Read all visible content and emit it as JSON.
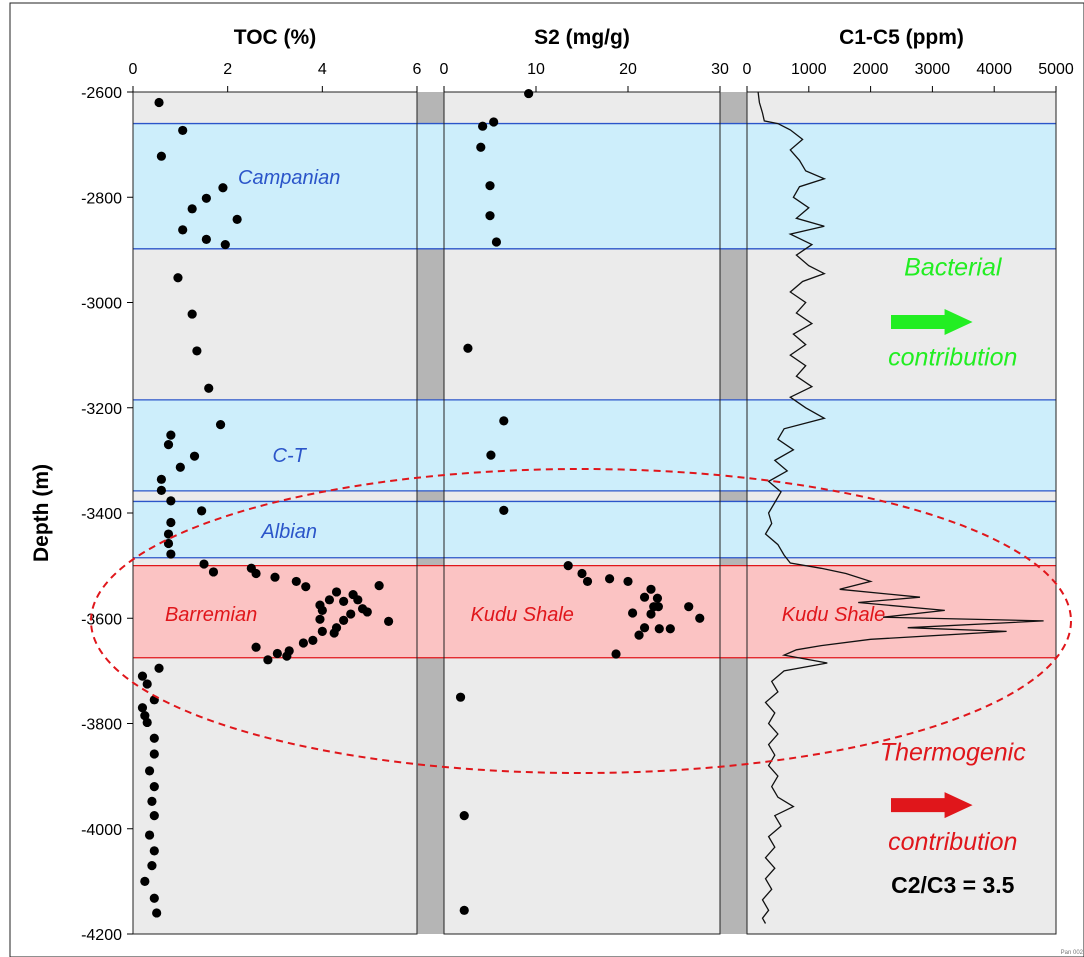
{
  "chart_data": {
    "type": "scatter",
    "ylabel": "Depth (m)",
    "ylim": [
      -4200,
      -2600
    ],
    "y_ticks": [
      "-2600",
      "-2800",
      "-3000",
      "-3200",
      "-3400",
      "-3600",
      "-3800",
      "-4000",
      "-4200"
    ],
    "y_tick_values": [
      -2600,
      -2800,
      -3000,
      -3200,
      -3400,
      -3600,
      -3800,
      -4000,
      -4200
    ],
    "colors": {
      "panel_bg": "#ebebeb",
      "blue_band": "#cdeefb",
      "blue_line": "#2b55c9",
      "red_band": "#fbc3c3",
      "red_line": "#e0161b",
      "bacterial": "#22ee22",
      "thermogenic": "#ee1111",
      "points": "#000000"
    },
    "bands": [
      {
        "top": -2660,
        "bottom": -2898,
        "color": "blue"
      },
      {
        "top": -3185,
        "bottom": -3358,
        "color": "blue"
      },
      {
        "top": -3378,
        "bottom": -3485,
        "color": "blue"
      },
      {
        "top": -3500,
        "bottom": -3675,
        "color": "red"
      }
    ],
    "panels": [
      {
        "title": "TOC (%)",
        "xlim": [
          0,
          6
        ],
        "x_ticks": [
          0,
          2,
          4,
          6
        ],
        "x_tick_labels": [
          "0",
          "2",
          "4",
          "6"
        ],
        "labels": [
          {
            "text": "Campanian",
            "x": 3.3,
            "y": -2760,
            "color": "blue"
          },
          {
            "text": "C-T",
            "x": 3.3,
            "y": -3288,
            "color": "blue"
          },
          {
            "text": "Albian",
            "x": 3.3,
            "y": -3432,
            "color": "blue"
          },
          {
            "text": "Barremian",
            "x": 1.65,
            "y": -3590,
            "color": "red"
          }
        ],
        "points": [
          [
            0.55,
            -2620
          ],
          [
            1.05,
            -2673
          ],
          [
            0.6,
            -2722
          ],
          [
            1.9,
            -2782
          ],
          [
            1.55,
            -2802
          ],
          [
            1.25,
            -2822
          ],
          [
            2.2,
            -2842
          ],
          [
            1.05,
            -2862
          ],
          [
            1.55,
            -2880
          ],
          [
            1.95,
            -2890
          ],
          [
            0.95,
            -2953
          ],
          [
            1.25,
            -3022
          ],
          [
            1.35,
            -3092
          ],
          [
            1.6,
            -3163
          ],
          [
            1.85,
            -3232
          ],
          [
            0.8,
            -3252
          ],
          [
            0.75,
            -3270
          ],
          [
            1.3,
            -3292
          ],
          [
            1.0,
            -3313
          ],
          [
            0.6,
            -3336
          ],
          [
            0.6,
            -3357
          ],
          [
            0.8,
            -3377
          ],
          [
            1.45,
            -3396
          ],
          [
            0.8,
            -3418
          ],
          [
            0.75,
            -3440
          ],
          [
            0.75,
            -3458
          ],
          [
            0.8,
            -3478
          ],
          [
            1.5,
            -3497
          ],
          [
            1.7,
            -3512
          ],
          [
            2.5,
            -3505
          ],
          [
            2.6,
            -3515
          ],
          [
            3.0,
            -3522
          ],
          [
            3.45,
            -3530
          ],
          [
            3.65,
            -3540
          ],
          [
            4.3,
            -3550
          ],
          [
            4.65,
            -3555
          ],
          [
            5.2,
            -3538
          ],
          [
            4.15,
            -3565
          ],
          [
            4.45,
            -3568
          ],
          [
            4.75,
            -3565
          ],
          [
            3.95,
            -3575
          ],
          [
            4.0,
            -3585
          ],
          [
            4.85,
            -3582
          ],
          [
            4.6,
            -3592
          ],
          [
            4.95,
            -3588
          ],
          [
            3.95,
            -3602
          ],
          [
            4.45,
            -3604
          ],
          [
            5.4,
            -3606
          ],
          [
            4.3,
            -3618
          ],
          [
            4.0,
            -3625
          ],
          [
            4.25,
            -3628
          ],
          [
            3.8,
            -3642
          ],
          [
            3.6,
            -3647
          ],
          [
            2.6,
            -3655
          ],
          [
            3.3,
            -3662
          ],
          [
            3.05,
            -3667
          ],
          [
            3.25,
            -3672
          ],
          [
            2.85,
            -3679
          ],
          [
            0.55,
            -3695
          ],
          [
            0.2,
            -3710
          ],
          [
            0.3,
            -3725
          ],
          [
            0.45,
            -3755
          ],
          [
            0.2,
            -3770
          ],
          [
            0.25,
            -3785
          ],
          [
            0.3,
            -3798
          ],
          [
            0.45,
            -3828
          ],
          [
            0.45,
            -3858
          ],
          [
            0.35,
            -3890
          ],
          [
            0.45,
            -3920
          ],
          [
            0.4,
            -3948
          ],
          [
            0.45,
            -3975
          ],
          [
            0.35,
            -4012
          ],
          [
            0.45,
            -4042
          ],
          [
            0.4,
            -4070
          ],
          [
            0.25,
            -4100
          ],
          [
            0.45,
            -4132
          ],
          [
            0.5,
            -4160
          ]
        ]
      },
      {
        "title": "S2 (mg/g)",
        "xlim": [
          0,
          30
        ],
        "x_ticks": [
          0,
          10,
          20,
          30
        ],
        "x_tick_labels": [
          "0",
          "10",
          "20",
          "30"
        ],
        "labels": [
          {
            "text": "Kudu Shale",
            "x": 8.5,
            "y": -3590,
            "color": "red"
          }
        ],
        "points": [
          [
            9.2,
            -2603
          ],
          [
            5.4,
            -2657
          ],
          [
            4.2,
            -2665
          ],
          [
            4.0,
            -2705
          ],
          [
            5.0,
            -2778
          ],
          [
            5.0,
            -2835
          ],
          [
            5.7,
            -2885
          ],
          [
            2.6,
            -3087
          ],
          [
            6.5,
            -3225
          ],
          [
            5.1,
            -3290
          ],
          [
            6.5,
            -3395
          ],
          [
            13.5,
            -3500
          ],
          [
            15.0,
            -3515
          ],
          [
            15.6,
            -3530
          ],
          [
            18.0,
            -3525
          ],
          [
            20.0,
            -3530
          ],
          [
            22.5,
            -3545
          ],
          [
            21.8,
            -3560
          ],
          [
            23.2,
            -3562
          ],
          [
            22.8,
            -3578
          ],
          [
            23.3,
            -3578
          ],
          [
            26.6,
            -3578
          ],
          [
            20.5,
            -3590
          ],
          [
            22.5,
            -3592
          ],
          [
            27.8,
            -3600
          ],
          [
            21.8,
            -3618
          ],
          [
            23.4,
            -3620
          ],
          [
            24.6,
            -3620
          ],
          [
            21.2,
            -3632
          ],
          [
            18.7,
            -3668
          ],
          [
            1.8,
            -3750
          ],
          [
            2.2,
            -3975
          ],
          [
            2.2,
            -4155
          ]
        ]
      },
      {
        "title": "C1-C5 (ppm)",
        "xlim": [
          0,
          5000
        ],
        "x_ticks": [
          0,
          1000,
          2000,
          3000,
          4000,
          5000
        ],
        "x_tick_labels": [
          "0",
          "1000",
          "2000",
          "3000",
          "4000",
          "5000"
        ],
        "labels": [
          {
            "text": "Kudu Shale",
            "x": 1400,
            "y": -3590,
            "color": "red"
          }
        ],
        "annotations": [
          {
            "text": "Bacterial",
            "x": 3330,
            "y": -2932,
            "color": "green"
          },
          {
            "text": "contribution",
            "x": 3330,
            "y": -3103,
            "color": "green"
          },
          {
            "text": "Thermogenic",
            "x": 3330,
            "y": -3853,
            "color": "red"
          },
          {
            "text": "contribution",
            "x": 3330,
            "y": -4023,
            "color": "red"
          },
          {
            "text": "C2/C3 = 3.5",
            "x": 3330,
            "y": -4105,
            "color": "black"
          }
        ],
        "arrows": [
          {
            "x1": 2330,
            "x2": 3650,
            "y": -3037,
            "color": "green"
          },
          {
            "x1": 2330,
            "x2": 3650,
            "y": -3955,
            "color": "red"
          }
        ],
        "line": [
          [
            180,
            -2600
          ],
          [
            200,
            -2620
          ],
          [
            250,
            -2640
          ],
          [
            280,
            -2655
          ],
          [
            500,
            -2660
          ],
          [
            700,
            -2672
          ],
          [
            900,
            -2690
          ],
          [
            700,
            -2710
          ],
          [
            850,
            -2730
          ],
          [
            950,
            -2750
          ],
          [
            1250,
            -2765
          ],
          [
            850,
            -2780
          ],
          [
            750,
            -2800
          ],
          [
            1000,
            -2820
          ],
          [
            800,
            -2840
          ],
          [
            1250,
            -2855
          ],
          [
            700,
            -2870
          ],
          [
            1050,
            -2890
          ],
          [
            800,
            -2910
          ],
          [
            1000,
            -2930
          ],
          [
            1250,
            -2945
          ],
          [
            900,
            -2960
          ],
          [
            700,
            -2980
          ],
          [
            950,
            -3000
          ],
          [
            800,
            -3020
          ],
          [
            1050,
            -3040
          ],
          [
            750,
            -3060
          ],
          [
            950,
            -3080
          ],
          [
            700,
            -3100
          ],
          [
            950,
            -3120
          ],
          [
            800,
            -3140
          ],
          [
            1050,
            -3160
          ],
          [
            700,
            -3180
          ],
          [
            950,
            -3200
          ],
          [
            1250,
            -3220
          ],
          [
            600,
            -3240
          ],
          [
            500,
            -3260
          ],
          [
            750,
            -3280
          ],
          [
            450,
            -3300
          ],
          [
            650,
            -3320
          ],
          [
            350,
            -3340
          ],
          [
            550,
            -3360
          ],
          [
            450,
            -3380
          ],
          [
            350,
            -3400
          ],
          [
            400,
            -3420
          ],
          [
            300,
            -3440
          ],
          [
            500,
            -3460
          ],
          [
            600,
            -3480
          ],
          [
            700,
            -3495
          ],
          [
            1200,
            -3505
          ],
          [
            1600,
            -3515
          ],
          [
            2000,
            -3530
          ],
          [
            1500,
            -3545
          ],
          [
            2800,
            -3560
          ],
          [
            1800,
            -3570
          ],
          [
            3200,
            -3585
          ],
          [
            2200,
            -3598
          ],
          [
            4800,
            -3605
          ],
          [
            2600,
            -3618
          ],
          [
            4200,
            -3625
          ],
          [
            2000,
            -3640
          ],
          [
            1200,
            -3652
          ],
          [
            800,
            -3660
          ],
          [
            600,
            -3670
          ],
          [
            1300,
            -3685
          ],
          [
            600,
            -3700
          ],
          [
            400,
            -3720
          ],
          [
            500,
            -3740
          ],
          [
            300,
            -3760
          ],
          [
            450,
            -3780
          ],
          [
            350,
            -3800
          ],
          [
            500,
            -3820
          ],
          [
            350,
            -3840
          ],
          [
            450,
            -3860
          ],
          [
            350,
            -3880
          ],
          [
            500,
            -3900
          ],
          [
            400,
            -3920
          ],
          [
            500,
            -3940
          ],
          [
            750,
            -3958
          ],
          [
            450,
            -3975
          ],
          [
            550,
            -3995
          ],
          [
            350,
            -4015
          ],
          [
            450,
            -4035
          ],
          [
            300,
            -4055
          ],
          [
            450,
            -4075
          ],
          [
            300,
            -4095
          ],
          [
            400,
            -4115
          ],
          [
            250,
            -4135
          ],
          [
            350,
            -4155
          ],
          [
            250,
            -4170
          ],
          [
            300,
            -4180
          ]
        ]
      }
    ]
  },
  "footer": {
    "code": "Pan 002"
  }
}
